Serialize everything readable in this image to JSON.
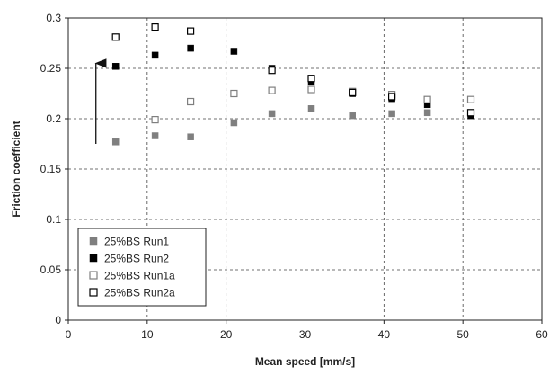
{
  "chart_data": {
    "type": "scatter",
    "xlabel": "Mean speed [mm/s]",
    "ylabel": "Friction coefficient",
    "xlim": [
      0,
      60
    ],
    "ylim": [
      0,
      0.3
    ],
    "x_ticks": [
      "0",
      "10",
      "20",
      "30",
      "40",
      "50",
      "60"
    ],
    "y_ticks": [
      "0",
      "0.05",
      "0.1",
      "0.15",
      "0.2",
      "0.25",
      "0.3"
    ],
    "grid": "dashed",
    "legend_position": "bottom-left",
    "annotation": "upward arrow near x = 3.5, from y = 0.175 to y = 0.255",
    "series": [
      {
        "name": "25%BS Run1",
        "marker": "filled-square",
        "color": "#7f7f7f",
        "points": [
          [
            6,
            0.177
          ],
          [
            11,
            0.183
          ],
          [
            15.5,
            0.182
          ],
          [
            21,
            0.196
          ],
          [
            25.8,
            0.205
          ],
          [
            30.8,
            0.21
          ],
          [
            36,
            0.203
          ],
          [
            41,
            0.205
          ],
          [
            45.5,
            0.206
          ],
          [
            51,
            0.205
          ]
        ]
      },
      {
        "name": "25%BS Run2",
        "marker": "filled-square",
        "color": "#000000",
        "points": [
          [
            6,
            0.252
          ],
          [
            11,
            0.263
          ],
          [
            15.5,
            0.27
          ],
          [
            21,
            0.267
          ],
          [
            25.8,
            0.25
          ],
          [
            30.8,
            0.237
          ],
          [
            36,
            0.225
          ],
          [
            41,
            0.22
          ],
          [
            45.5,
            0.214
          ],
          [
            51,
            0.203
          ]
        ]
      },
      {
        "name": "25%BS Run1a",
        "marker": "open-square",
        "color": "#7f7f7f",
        "points": [
          [
            11,
            0.199
          ],
          [
            15.5,
            0.217
          ],
          [
            21,
            0.225
          ],
          [
            25.8,
            0.228
          ],
          [
            30.8,
            0.229
          ],
          [
            36,
            0.227
          ],
          [
            41,
            0.224
          ],
          [
            45.5,
            0.219
          ],
          [
            51,
            0.219
          ]
        ]
      },
      {
        "name": "25%BS Run2a",
        "marker": "open-square",
        "color": "#000000",
        "points": [
          [
            6,
            0.281
          ],
          [
            11,
            0.291
          ],
          [
            15.5,
            0.287
          ],
          [
            25.8,
            0.248
          ],
          [
            30.8,
            0.24
          ],
          [
            36,
            0.226
          ],
          [
            41,
            0.222
          ],
          [
            51,
            0.206
          ]
        ]
      }
    ]
  }
}
